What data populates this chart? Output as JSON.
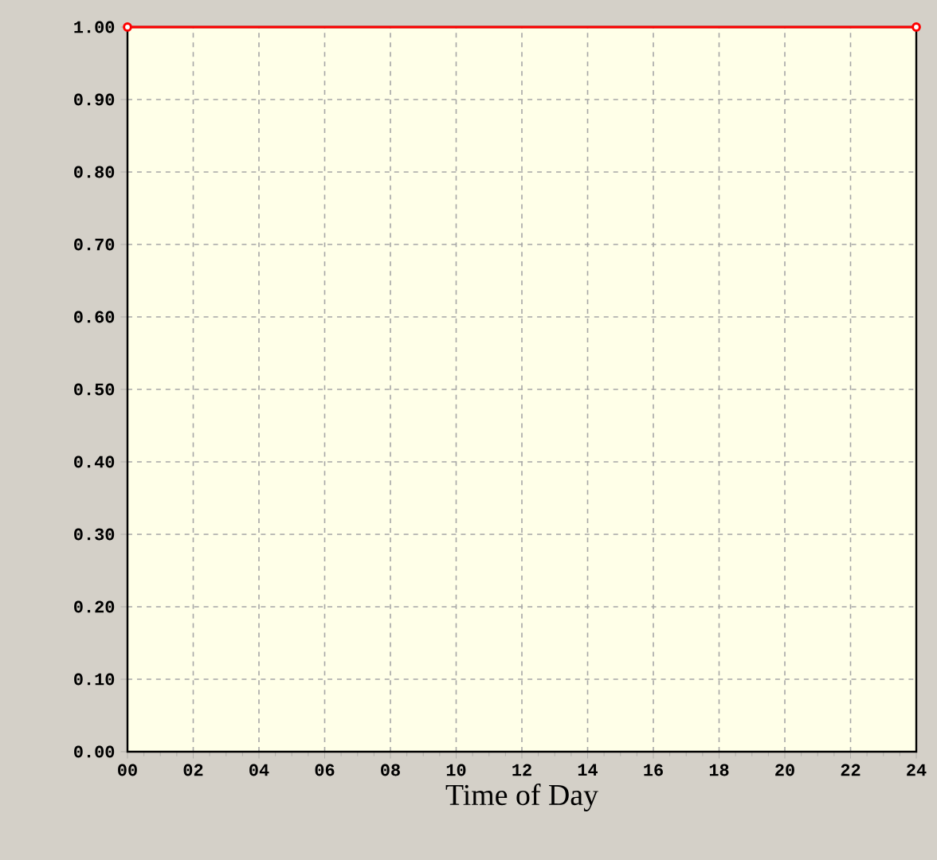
{
  "chart_data": {
    "type": "line",
    "xlabel": "Time of Day",
    "x": [
      0,
      24
    ],
    "series": [
      {
        "color": "#ff0000",
        "values": [
          1.0,
          1.0
        ]
      }
    ],
    "xlim": [
      0,
      24
    ],
    "xticks": [
      {
        "value": 0,
        "label": "00"
      },
      {
        "value": 2,
        "label": "02"
      },
      {
        "value": 4,
        "label": "04"
      },
      {
        "value": 6,
        "label": "06"
      },
      {
        "value": 8,
        "label": "08"
      },
      {
        "value": 10,
        "label": "10"
      },
      {
        "value": 12,
        "label": "12"
      },
      {
        "value": 14,
        "label": "14"
      },
      {
        "value": 16,
        "label": "16"
      },
      {
        "value": 18,
        "label": "18"
      },
      {
        "value": 20,
        "label": "20"
      },
      {
        "value": 22,
        "label": "22"
      },
      {
        "value": 24,
        "label": "24"
      }
    ],
    "ylim": [
      0,
      1
    ],
    "yticks": [
      {
        "value": 0,
        "label": "0.00"
      },
      {
        "value": 0.1,
        "label": "0.10"
      },
      {
        "value": 0.2,
        "label": "0.20"
      },
      {
        "value": 0.3,
        "label": "0.30"
      },
      {
        "value": 0.4,
        "label": "0.40"
      },
      {
        "value": 0.5,
        "label": "0.50"
      },
      {
        "value": 0.6,
        "label": "0.60"
      },
      {
        "value": 0.7,
        "label": "0.70"
      },
      {
        "value": 0.8,
        "label": "0.80"
      },
      {
        "value": 0.9,
        "label": "0.90"
      },
      {
        "value": 1,
        "label": "1.00"
      }
    ],
    "grid": true,
    "marker": "circle",
    "line_style": "solid"
  }
}
